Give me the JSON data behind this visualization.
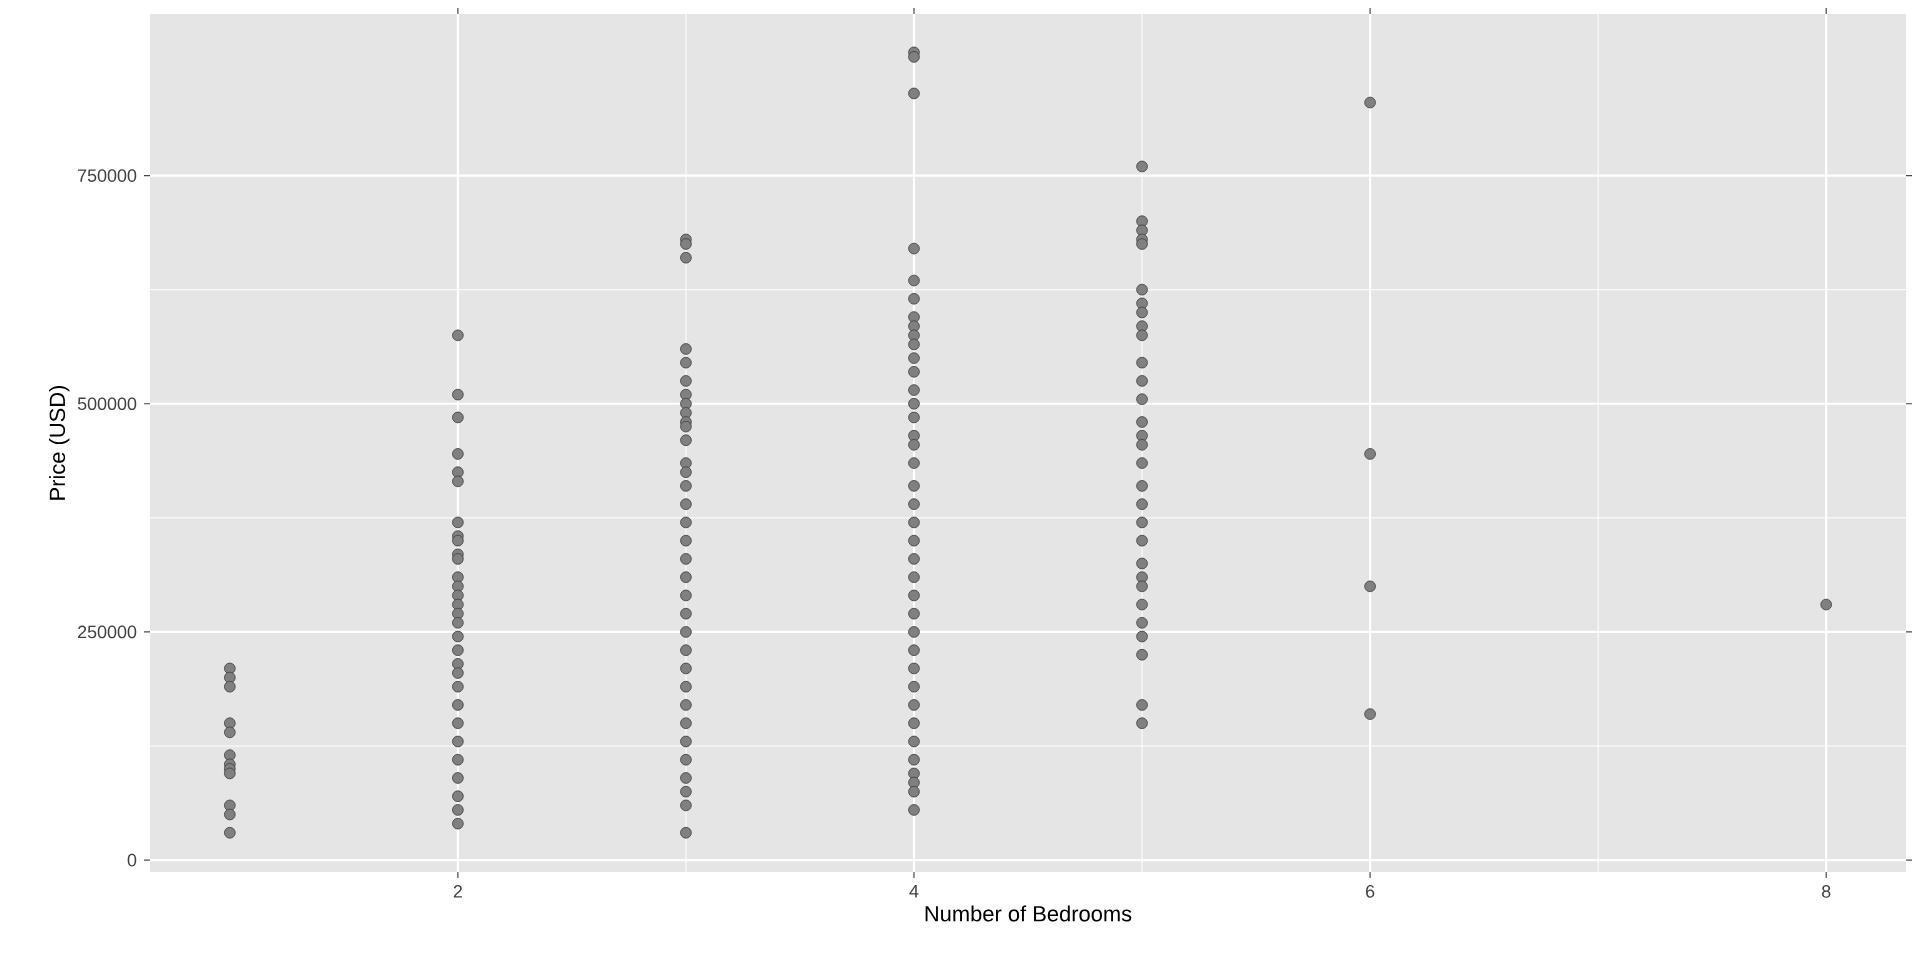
{
  "chart_data": {
    "type": "scatter",
    "xlabel": "Number of Bedrooms",
    "ylabel": "Price (USD)",
    "xlim": [
      0.65,
      8.35
    ],
    "ylim": [
      -13000,
      927000
    ],
    "xticks": [
      2,
      4,
      6,
      8
    ],
    "yticks": [
      0,
      250000,
      500000,
      750000
    ],
    "grid": true,
    "color": "#808080",
    "x": [
      1,
      1,
      1,
      1,
      1,
      1,
      1,
      1,
      1,
      1,
      1,
      1,
      2,
      2,
      2,
      2,
      2,
      2,
      2,
      2,
      2,
      2,
      2,
      2,
      2,
      2,
      2,
      2,
      2,
      2,
      2,
      2,
      2,
      2,
      2,
      2,
      2,
      2,
      2,
      2,
      2,
      2,
      3,
      3,
      3,
      3,
      3,
      3,
      3,
      3,
      3,
      3,
      3,
      3,
      3,
      3,
      3,
      3,
      3,
      3,
      3,
      3,
      3,
      3,
      3,
      3,
      3,
      3,
      3,
      3,
      3,
      3,
      3,
      3,
      3,
      3,
      4,
      4,
      4,
      4,
      4,
      4,
      4,
      4,
      4,
      4,
      4,
      4,
      4,
      4,
      4,
      4,
      4,
      4,
      4,
      4,
      4,
      4,
      4,
      4,
      4,
      4,
      4,
      4,
      4,
      4,
      4,
      4,
      4,
      4,
      4,
      4,
      4,
      4,
      5,
      5,
      5,
      5,
      5,
      5,
      5,
      5,
      5,
      5,
      5,
      5,
      5,
      5,
      5,
      5,
      5,
      5,
      5,
      5,
      5,
      5,
      5,
      5,
      5,
      5,
      5,
      5,
      5,
      5,
      6,
      6,
      6,
      6,
      8
    ],
    "values": [
      210000,
      200000,
      190000,
      150000,
      140000,
      115000,
      105000,
      100000,
      95000,
      60000,
      50000,
      30000,
      575000,
      510000,
      485000,
      445000,
      425000,
      415000,
      370000,
      355000,
      350000,
      335000,
      330000,
      310000,
      300000,
      290000,
      280000,
      270000,
      260000,
      245000,
      230000,
      215000,
      205000,
      190000,
      170000,
      150000,
      130000,
      110000,
      90000,
      70000,
      55000,
      40000,
      680000,
      675000,
      660000,
      560000,
      545000,
      525000,
      510000,
      500000,
      490000,
      480000,
      475000,
      460000,
      435000,
      425000,
      410000,
      390000,
      370000,
      350000,
      330000,
      310000,
      290000,
      270000,
      250000,
      230000,
      210000,
      190000,
      170000,
      150000,
      130000,
      110000,
      90000,
      75000,
      60000,
      30000,
      885000,
      880000,
      840000,
      670000,
      635000,
      615000,
      595000,
      585000,
      575000,
      565000,
      550000,
      535000,
      515000,
      500000,
      485000,
      465000,
      455000,
      435000,
      410000,
      390000,
      370000,
      350000,
      330000,
      310000,
      290000,
      270000,
      250000,
      230000,
      210000,
      190000,
      170000,
      150000,
      130000,
      110000,
      95000,
      85000,
      75000,
      55000,
      760000,
      700000,
      690000,
      680000,
      675000,
      625000,
      610000,
      600000,
      585000,
      575000,
      545000,
      525000,
      505000,
      480000,
      465000,
      455000,
      435000,
      410000,
      390000,
      370000,
      350000,
      325000,
      310000,
      300000,
      280000,
      260000,
      245000,
      225000,
      170000,
      150000,
      830000,
      445000,
      300000,
      160000,
      280000
    ]
  }
}
